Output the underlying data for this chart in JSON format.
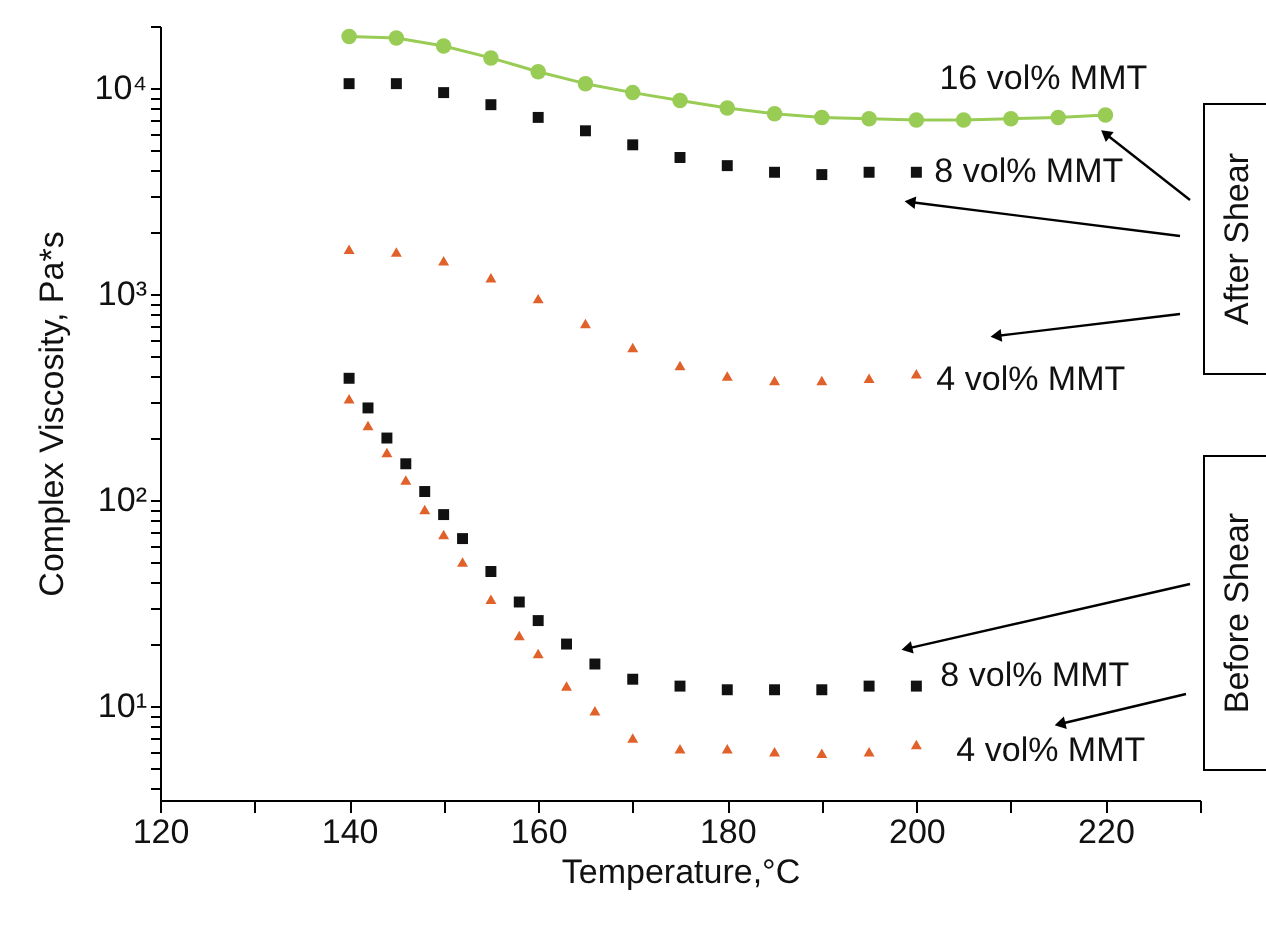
{
  "chart_data": {
    "type": "scatter",
    "xlabel": "Temperature,°C",
    "ylabel": "Complex Viscosity, Pa*s",
    "log": true,
    "grid": false,
    "xlim": [
      120,
      230
    ],
    "xticks": [
      120,
      {
        "value": 130,
        "label": null
      },
      140,
      {
        "value": 150,
        "label": null
      },
      160,
      {
        "value": 170,
        "label": null
      },
      180,
      {
        "value": 190,
        "label": null
      },
      200,
      {
        "value": 210,
        "label": null
      },
      220,
      {
        "value": 230,
        "label": null
      }
    ],
    "ylim": [
      3.5,
      20000
    ],
    "yticks": [
      {
        "value": 4,
        "label": null
      },
      {
        "value": 5,
        "label": null
      },
      {
        "value": 6,
        "label": null
      },
      {
        "value": 7,
        "label": null
      },
      {
        "value": 8,
        "label": null
      },
      {
        "value": 9,
        "label": null
      },
      {
        "value": 10,
        "label": "10¹"
      },
      {
        "value": 20,
        "label": null
      },
      {
        "value": 30,
        "label": null
      },
      {
        "value": 40,
        "label": null
      },
      {
        "value": 50,
        "label": null
      },
      {
        "value": 60,
        "label": null
      },
      {
        "value": 70,
        "label": null
      },
      {
        "value": 80,
        "label": null
      },
      {
        "value": 90,
        "label": null
      },
      {
        "value": 100,
        "label": "10²"
      },
      {
        "value": 200,
        "label": null
      },
      {
        "value": 300,
        "label": null
      },
      {
        "value": 400,
        "label": null
      },
      {
        "value": 500,
        "label": null
      },
      {
        "value": 600,
        "label": null
      },
      {
        "value": 700,
        "label": null
      },
      {
        "value": 800,
        "label": null
      },
      {
        "value": 900,
        "label": null
      },
      {
        "value": 1000,
        "label": "10³"
      },
      {
        "value": 2000,
        "label": null
      },
      {
        "value": 3000,
        "label": null
      },
      {
        "value": 4000,
        "label": null
      },
      {
        "value": 5000,
        "label": null
      },
      {
        "value": 6000,
        "label": null
      },
      {
        "value": 7000,
        "label": null
      },
      {
        "value": 8000,
        "label": null
      },
      {
        "value": 9000,
        "label": null
      },
      {
        "value": 10000,
        "label": "10⁴"
      },
      {
        "value": 20000,
        "label": null
      }
    ],
    "annotations": [
      {
        "text": "After Shear",
        "x": 220,
        "y": 6000
      },
      {
        "text": "Before Shear",
        "x": 199,
        "y": 19
      }
    ],
    "series": [
      {
        "name": "16 vol% MMT",
        "type": "line",
        "marker": "circle",
        "color": "#99cc55",
        "x": [
          140,
          145,
          150,
          155,
          160,
          165,
          170,
          175,
          180,
          185,
          190,
          195,
          200,
          205,
          210,
          215,
          220
        ],
        "values": [
          17800,
          17500,
          16000,
          14000,
          12000,
          10500,
          9500,
          8700,
          8000,
          7500,
          7200,
          7100,
          7000,
          7000,
          7100,
          7200,
          7400
        ]
      },
      {
        "name": "8 vol% MMT",
        "marker": "square",
        "color": "#111111",
        "x": [
          140,
          145,
          150,
          155,
          160,
          165,
          170,
          175,
          180,
          185,
          190,
          195,
          200
        ],
        "values": [
          10500,
          10500,
          9500,
          8300,
          7200,
          6200,
          5300,
          4600,
          4200,
          3900,
          3800,
          3900,
          3900
        ]
      },
      {
        "name": "4 vol% MMT",
        "marker": "triangle",
        "color": "#e0622a",
        "x": [
          140,
          145,
          150,
          155,
          160,
          165,
          170,
          175,
          180,
          185,
          190,
          195,
          200
        ],
        "values": [
          1650,
          1600,
          1450,
          1200,
          950,
          720,
          550,
          450,
          400,
          380,
          380,
          390,
          410
        ]
      },
      {
        "name": "8 vol% MMT",
        "marker": "square",
        "color": "#111111",
        "x": [
          140,
          142,
          144,
          146,
          148,
          150,
          152,
          155,
          158,
          160,
          163,
          166,
          170,
          175,
          180,
          185,
          190,
          195,
          200
        ],
        "values": [
          390,
          280,
          200,
          150,
          110,
          85,
          65,
          45,
          32,
          26,
          20,
          16,
          13.5,
          12.5,
          12,
          12,
          12,
          12.5,
          12.5
        ]
      },
      {
        "name": "4 vol% MMT",
        "marker": "triangle",
        "color": "#e0622a",
        "x": [
          140,
          142,
          144,
          146,
          148,
          150,
          152,
          155,
          158,
          160,
          163,
          166,
          170,
          175,
          180,
          185,
          190,
          195,
          200
        ],
        "values": [
          310,
          230,
          170,
          125,
          90,
          68,
          50,
          33,
          22,
          18,
          12.5,
          9.5,
          7,
          6.2,
          6.2,
          6,
          5.9,
          6,
          6.5
        ]
      }
    ]
  }
}
